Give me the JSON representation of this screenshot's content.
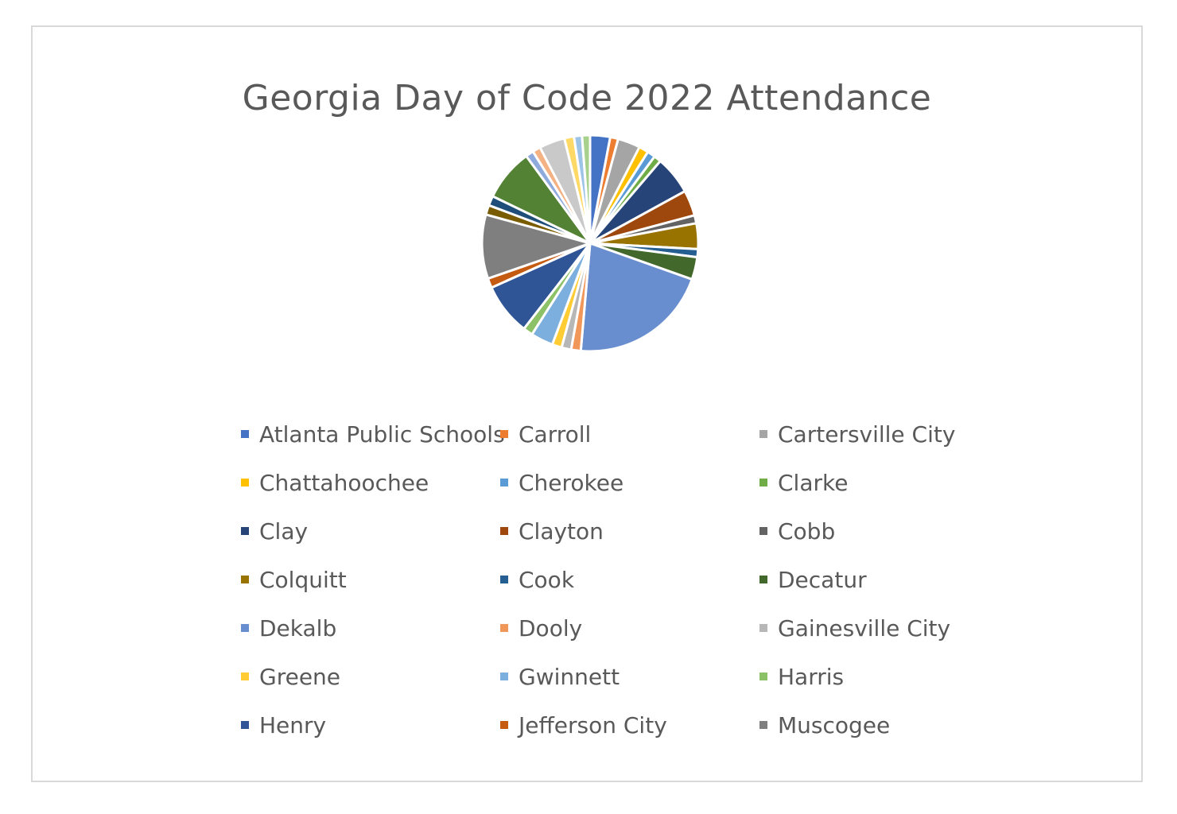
{
  "chart_data": {
    "type": "pie",
    "title": "Georgia Day of Code 2022 Attendance",
    "legend_position": "bottom",
    "categories": [
      "Atlanta Public Schools",
      "Carroll",
      "Cartersville City",
      "Chattahoochee",
      "Cherokee",
      "Clarke",
      "Clay",
      "Clayton",
      "Cobb",
      "Colquitt",
      "Cook",
      "Decatur",
      "Dekalb",
      "Dooly",
      "Gainesville City",
      "Greene",
      "Gwinnett",
      "Harris",
      "Henry",
      "Jefferson City",
      "Muscogee"
    ],
    "colors": [
      "#4472c4",
      "#ed7d31",
      "#a5a5a5",
      "#ffc000",
      "#5b9bd5",
      "#70ad47",
      "#264478",
      "#9e480e",
      "#636363",
      "#997300",
      "#255e91",
      "#43682b",
      "#698ed0",
      "#f1975a",
      "#b7b7b7",
      "#ffcd33",
      "#7cafdd",
      "#8cc168",
      "#2f5597",
      "#c55a11",
      "#7f7f7f"
    ],
    "slices": [
      {
        "name": "Atlanta Public Schools",
        "value": 2.5,
        "color": "#4472c4"
      },
      {
        "name": "Carroll",
        "value": 1.0,
        "color": "#ed7d31"
      },
      {
        "name": "Cartersville City",
        "value": 2.8,
        "color": "#a5a5a5"
      },
      {
        "name": "Chattahoochee",
        "value": 1.2,
        "color": "#ffc000"
      },
      {
        "name": "Cherokee",
        "value": 1.0,
        "color": "#5b9bd5"
      },
      {
        "name": "Clarke",
        "value": 0.9,
        "color": "#70ad47"
      },
      {
        "name": "Clay",
        "value": 4.8,
        "color": "#264478"
      },
      {
        "name": "Clayton",
        "value": 3.2,
        "color": "#9e480e"
      },
      {
        "name": "Cobb",
        "value": 1.0,
        "color": "#636363"
      },
      {
        "name": "Colquitt",
        "value": 3.2,
        "color": "#997300"
      },
      {
        "name": "Cook",
        "value": 1.0,
        "color": "#255e91"
      },
      {
        "name": "Decatur",
        "value": 2.8,
        "color": "#43682b"
      },
      {
        "name": "Dekalb",
        "value": 17.5,
        "color": "#698ed0"
      },
      {
        "name": "Dooly",
        "value": 1.2,
        "color": "#f1975a"
      },
      {
        "name": "Gainesville City",
        "value": 1.2,
        "color": "#b7b7b7"
      },
      {
        "name": "Greene",
        "value": 1.2,
        "color": "#ffcd33"
      },
      {
        "name": "Gwinnett",
        "value": 2.8,
        "color": "#7cafdd"
      },
      {
        "name": "Harris",
        "value": 1.2,
        "color": "#8cc168"
      },
      {
        "name": "Henry",
        "value": 6.5,
        "color": "#2f5597"
      },
      {
        "name": "Jefferson City",
        "value": 1.2,
        "color": "#c55a11"
      },
      {
        "name": "Muscogee",
        "value": 8.0,
        "color": "#7f7f7f"
      },
      {
        "value": 1.2,
        "color": "#7a5c00"
      },
      {
        "value": 1.2,
        "color": "#1e4e79"
      },
      {
        "value": 6.5,
        "color": "#548235"
      },
      {
        "value": 1.0,
        "color": "#8faadc"
      },
      {
        "value": 1.0,
        "color": "#f4b183"
      },
      {
        "value": 3.2,
        "color": "#c9c9c9"
      },
      {
        "value": 1.2,
        "color": "#ffd966"
      },
      {
        "value": 1.0,
        "color": "#9dc3e6"
      },
      {
        "value": 1.0,
        "color": "#a9d18e"
      }
    ]
  }
}
